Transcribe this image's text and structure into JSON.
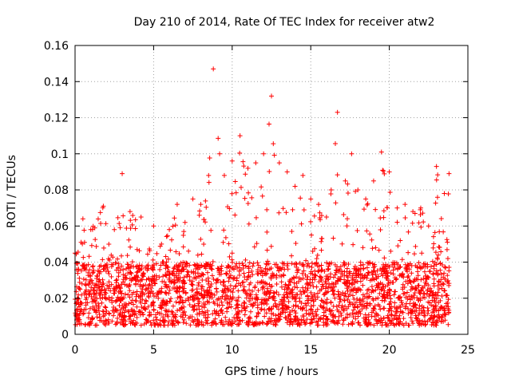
{
  "chart_data": {
    "type": "scatter",
    "title": "Day 210 of 2014, Rate Of TEC Index for receiver atw2",
    "xlabel": "GPS time / hours",
    "ylabel": "ROTI / TECUs",
    "xlim": [
      0,
      25
    ],
    "ylim": [
      0,
      0.16
    ],
    "xticks": [
      "0",
      "5",
      "10",
      "15",
      "20",
      "25"
    ],
    "yticks": [
      "0",
      "0.02",
      "0.04",
      "0.06",
      "0.08",
      "0.1",
      "0.12",
      "0.14",
      "0.16"
    ],
    "grid": true,
    "marker": "+",
    "color": "#ff0000",
    "series": [
      {
        "x_range": [
          0,
          23.8
        ],
        "baseline_range": [
          0.005,
          0.04
        ],
        "envelope": [
          [
            0,
            0.045
          ],
          [
            0.5,
            0.064
          ],
          [
            1,
            0.058
          ],
          [
            1.8,
            0.071
          ],
          [
            2.5,
            0.058
          ],
          [
            3,
            0.089
          ],
          [
            3.5,
            0.068
          ],
          [
            4.2,
            0.065
          ],
          [
            5,
            0.06
          ],
          [
            5.5,
            0.05
          ],
          [
            6,
            0.058
          ],
          [
            6.5,
            0.072
          ],
          [
            7,
            0.062
          ],
          [
            7.5,
            0.075
          ],
          [
            8,
            0.072
          ],
          [
            8.5,
            0.088
          ],
          [
            8.8,
            0.147
          ],
          [
            9.2,
            0.1
          ],
          [
            9.5,
            0.088
          ],
          [
            10,
            0.096
          ],
          [
            10.5,
            0.11
          ],
          [
            11,
            0.092
          ],
          [
            11.5,
            0.095
          ],
          [
            12,
            0.1
          ],
          [
            12.5,
            0.132
          ],
          [
            13,
            0.095
          ],
          [
            13.5,
            0.09
          ],
          [
            14,
            0.082
          ],
          [
            14.5,
            0.088
          ],
          [
            15,
            0.075
          ],
          [
            15.5,
            0.072
          ],
          [
            16,
            0.065
          ],
          [
            16.3,
            0.08
          ],
          [
            16.7,
            0.123
          ],
          [
            17.2,
            0.085
          ],
          [
            17.6,
            0.1
          ],
          [
            18,
            0.08
          ],
          [
            18.5,
            0.075
          ],
          [
            19,
            0.085
          ],
          [
            19.5,
            0.101
          ],
          [
            20,
            0.09
          ],
          [
            20.5,
            0.07
          ],
          [
            21,
            0.072
          ],
          [
            21.5,
            0.068
          ],
          [
            22,
            0.07
          ],
          [
            22.5,
            0.06
          ],
          [
            23,
            0.093
          ],
          [
            23.5,
            0.078
          ],
          [
            23.8,
            0.089
          ]
        ]
      }
    ]
  }
}
